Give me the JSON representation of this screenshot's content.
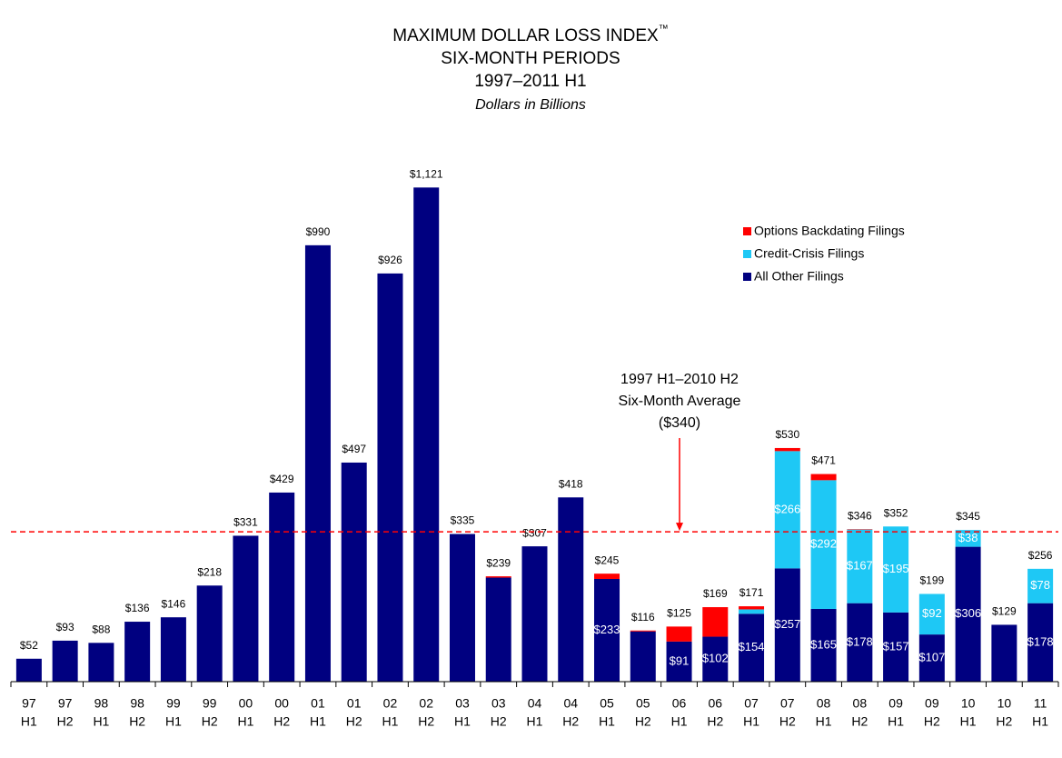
{
  "chart_data": {
    "type": "stacked_bar",
    "title": "MAXIMUM DOLLAR LOSS INDEX",
    "title_mark": "™",
    "subtitle": [
      "SIX-MONTH PERIODS",
      "1997–2011 H1"
    ],
    "unit_note": "Dollars in Billions",
    "categories": [
      [
        "97",
        "H1"
      ],
      [
        "97",
        "H2"
      ],
      [
        "98",
        "H1"
      ],
      [
        "98",
        "H2"
      ],
      [
        "99",
        "H1"
      ],
      [
        "99",
        "H2"
      ],
      [
        "00",
        "H1"
      ],
      [
        "00",
        "H2"
      ],
      [
        "01",
        "H1"
      ],
      [
        "01",
        "H2"
      ],
      [
        "02",
        "H1"
      ],
      [
        "02",
        "H2"
      ],
      [
        "03",
        "H1"
      ],
      [
        "03",
        "H2"
      ],
      [
        "04",
        "H1"
      ],
      [
        "04",
        "H2"
      ],
      [
        "05",
        "H1"
      ],
      [
        "05",
        "H2"
      ],
      [
        "06",
        "H1"
      ],
      [
        "06",
        "H2"
      ],
      [
        "07",
        "H1"
      ],
      [
        "07",
        "H2"
      ],
      [
        "08",
        "H1"
      ],
      [
        "08",
        "H2"
      ],
      [
        "09",
        "H1"
      ],
      [
        "09",
        "H2"
      ],
      [
        "10",
        "H1"
      ],
      [
        "10",
        "H2"
      ],
      [
        "11",
        "H1"
      ]
    ],
    "series": [
      {
        "name": "All Other Filings",
        "color": "#000080",
        "values": [
          52,
          93,
          88,
          136,
          146,
          218,
          331,
          429,
          990,
          497,
          926,
          1121,
          335,
          236,
          307,
          418,
          233,
          114,
          91,
          102,
          154,
          257,
          165,
          178,
          157,
          107,
          306,
          129,
          178
        ],
        "value_labels": [
          null,
          null,
          null,
          null,
          null,
          null,
          null,
          null,
          null,
          null,
          null,
          null,
          null,
          null,
          null,
          null,
          "$233",
          null,
          "$91",
          "$102",
          "$154",
          "$257",
          "$165",
          "$178",
          "$157",
          "$107",
          "$306",
          null,
          "$178"
        ]
      },
      {
        "name": "Credit-Crisis Filings",
        "color": "#1ec8f5",
        "values": [
          null,
          null,
          null,
          null,
          null,
          null,
          null,
          null,
          null,
          null,
          null,
          null,
          null,
          null,
          null,
          null,
          null,
          null,
          null,
          null,
          10,
          266,
          292,
          167,
          195,
          92,
          38,
          null,
          78
        ],
        "value_labels": [
          null,
          null,
          null,
          null,
          null,
          null,
          null,
          null,
          null,
          null,
          null,
          null,
          null,
          null,
          null,
          null,
          null,
          null,
          null,
          null,
          null,
          "$266",
          "$292",
          "$167",
          "$195",
          "$92",
          "$38",
          null,
          "$78"
        ]
      },
      {
        "name": "Options Backdating Filings",
        "color": "#ff0000",
        "values": [
          null,
          null,
          null,
          null,
          null,
          null,
          null,
          null,
          null,
          null,
          null,
          null,
          null,
          3,
          null,
          null,
          12,
          2,
          34,
          67,
          7,
          7,
          14,
          1,
          null,
          null,
          null,
          null,
          null
        ],
        "value_labels": [
          null,
          null,
          null,
          null,
          null,
          null,
          null,
          null,
          null,
          null,
          null,
          null,
          null,
          null,
          null,
          null,
          null,
          null,
          null,
          null,
          null,
          null,
          null,
          null,
          null,
          null,
          null,
          null,
          null
        ]
      }
    ],
    "totals": [
      52,
      93,
      88,
      136,
      146,
      218,
      331,
      429,
      990,
      497,
      926,
      1121,
      335,
      239,
      307,
      418,
      245,
      116,
      125,
      169,
      171,
      530,
      471,
      346,
      352,
      199,
      345,
      129,
      256
    ],
    "total_labels": [
      "$52",
      "$93",
      "$88",
      "$136",
      "$146",
      "$218",
      "$331",
      "$429",
      "$990",
      "$497",
      "$926",
      "$1,121",
      "$335",
      "$239",
      "$307",
      "$418",
      "$245",
      "$116",
      "$125",
      "$169",
      "$171",
      "$530",
      "$471",
      "$346",
      "$352",
      "$199",
      "$345",
      "$129",
      "$256"
    ],
    "ylim": [
      0,
      1200
    ],
    "reference_line": {
      "value": 340,
      "color": "#ff0000",
      "label": [
        "1997 H1–2010 H2",
        "Six-Month Average",
        "($340)"
      ]
    },
    "legend": "upper right"
  }
}
